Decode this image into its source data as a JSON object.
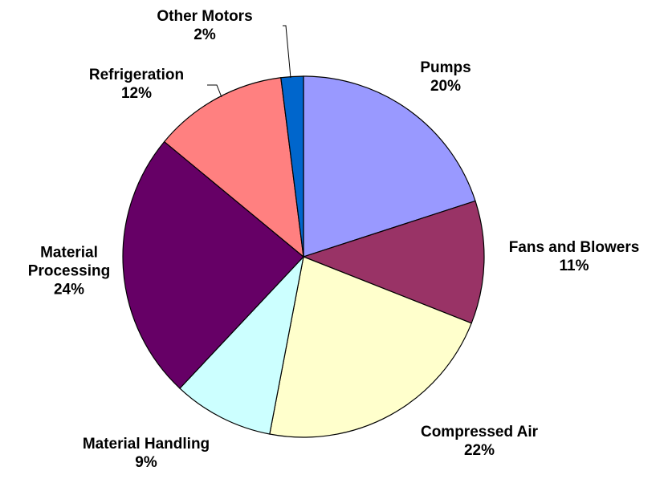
{
  "chart_data": {
    "type": "pie",
    "categories": [
      "Pumps",
      "Fans and Blowers",
      "Compressed Air",
      "Material Handling",
      "Material Processing",
      "Refrigeration",
      "Other Motors"
    ],
    "values": [
      20,
      11,
      22,
      9,
      24,
      12,
      2
    ],
    "value_labels": [
      "20%",
      "11%",
      "22%",
      "9%",
      "24%",
      "12%",
      "2%"
    ],
    "colors": [
      "#9999ff",
      "#993366",
      "#ffffcc",
      "#ccffff",
      "#660066",
      "#ff8080",
      "#0066cc"
    ]
  }
}
